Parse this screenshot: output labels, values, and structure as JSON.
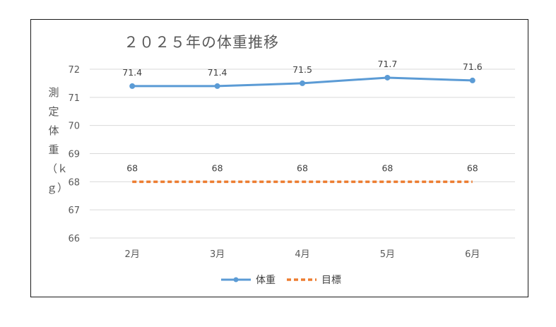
{
  "chart_data": {
    "type": "line",
    "title": "２０２５年の体重推移",
    "ylabel": "測定体重（ｋｇ）",
    "xlabel": "",
    "categories": [
      "2月",
      "3月",
      "4月",
      "5月",
      "6月"
    ],
    "ylim": [
      66,
      72
    ],
    "yticks": [
      66,
      67,
      68,
      69,
      70,
      71,
      72
    ],
    "grid": true,
    "legend_position": "bottom",
    "series": [
      {
        "name": "体重",
        "values": [
          71.4,
          71.4,
          71.5,
          71.7,
          71.6
        ],
        "labels": [
          "71.4",
          "71.4",
          "71.5",
          "71.7",
          "71.6"
        ],
        "color": "#5b9bd5",
        "style": "solid-marker"
      },
      {
        "name": "目標",
        "values": [
          68,
          68,
          68,
          68,
          68
        ],
        "labels": [
          "68",
          "68",
          "68",
          "68",
          "68"
        ],
        "color": "#ed7d31",
        "style": "dashed"
      }
    ]
  }
}
